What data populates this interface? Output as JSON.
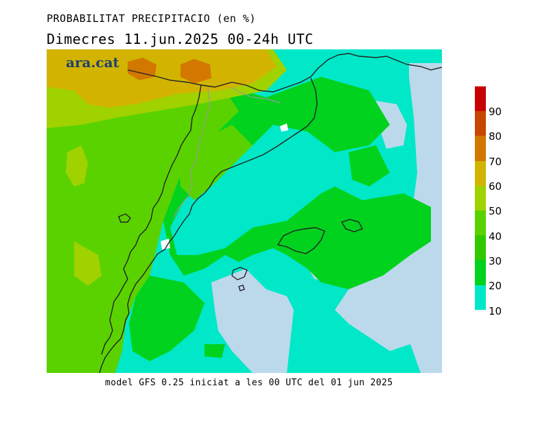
{
  "header": {
    "title": "PROBABILITAT PRECIPITACIO (en %)",
    "subtitle": "Dimecres  11.jun.2025 00-24h UTC"
  },
  "logo": {
    "text": "ara.cat"
  },
  "footer": {
    "text": "model GFS 0.25 iniciat a les 00 UTC del 01 jun 2025"
  },
  "map": {
    "variable": "precipitation probability",
    "units": "%",
    "regions": [
      "Catalunya",
      "Illes Balears",
      "Comunitat Valenciana",
      "Aragó",
      "Sud de França"
    ]
  },
  "legend": {
    "labels": [
      "10",
      "20",
      "30",
      "40",
      "50",
      "60",
      "70",
      "80",
      "90"
    ],
    "colors": [
      "#00e8c8",
      "#00d21e",
      "#32c800",
      "#5ad200",
      "#a0d200",
      "#d2b400",
      "#d27800",
      "#c84600",
      "#c80000"
    ],
    "no_data_color": "#bcd9ec"
  }
}
